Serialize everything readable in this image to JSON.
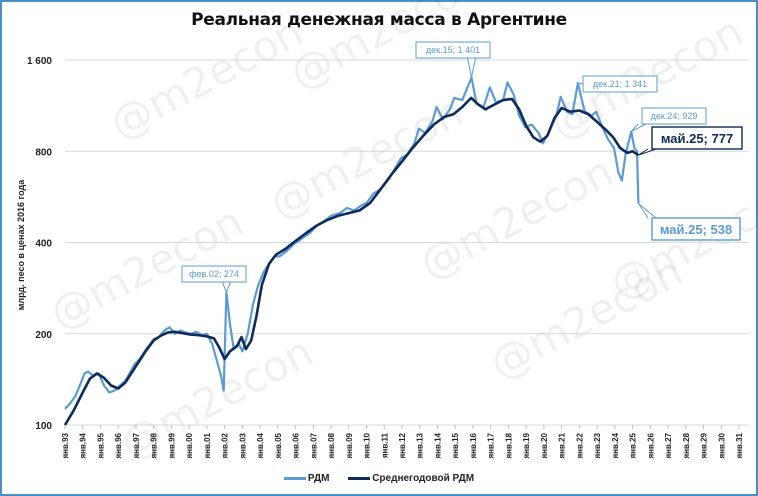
{
  "chart_data": {
    "type": "line",
    "title": "Реальная денежная масса в Аргентине",
    "xlabel": "",
    "ylabel": "млрд. песо в ценах 2016 года",
    "yscale": "log",
    "ylim": [
      100,
      1600
    ],
    "yticks": [
      {
        "value": 100,
        "label": "100"
      },
      {
        "value": 200,
        "label": "200"
      },
      {
        "value": 400,
        "label": "400"
      },
      {
        "value": 800,
        "label": "800"
      },
      {
        "value": 1600,
        "label": "1 600"
      }
    ],
    "xticks": [
      "янв.93",
      "янв.94",
      "янв.95",
      "янв.96",
      "янв.97",
      "янв.98",
      "янв.99",
      "янв.00",
      "янв.01",
      "янв.02",
      "янв.03",
      "янв.04",
      "янв.05",
      "янв.06",
      "янв.07",
      "янв.08",
      "янв.09",
      "янв.10",
      "янв.11",
      "янв.12",
      "янв.13",
      "янв.14",
      "янв.15",
      "янв.16",
      "янв.17",
      "янв.18",
      "янв.19",
      "янв.20",
      "янв.21",
      "янв.22",
      "янв.23",
      "янв.24",
      "янв.25",
      "янв.26",
      "янв.27",
      "янв.28",
      "янв.29",
      "янв.30",
      "янв.31"
    ],
    "grid": true,
    "legend_position": "bottom",
    "series": [
      {
        "name": "РДМ",
        "color": "#5b9bd5",
        "points": [
          [
            1993.0,
            113
          ],
          [
            1993.3,
            118
          ],
          [
            1993.6,
            125
          ],
          [
            1993.9,
            138
          ],
          [
            1994.1,
            148
          ],
          [
            1994.3,
            150
          ],
          [
            1994.6,
            145
          ],
          [
            1994.9,
            148
          ],
          [
            1995.2,
            135
          ],
          [
            1995.5,
            128
          ],
          [
            1995.8,
            130
          ],
          [
            1996.1,
            135
          ],
          [
            1996.4,
            140
          ],
          [
            1996.7,
            150
          ],
          [
            1996.9,
            158
          ],
          [
            1997.2,
            165
          ],
          [
            1997.5,
            175
          ],
          [
            1997.8,
            185
          ],
          [
            1998.0,
            192
          ],
          [
            1998.3,
            195
          ],
          [
            1998.6,
            205
          ],
          [
            1998.9,
            210
          ],
          [
            1999.2,
            200
          ],
          [
            1999.5,
            205
          ],
          [
            1999.8,
            202
          ],
          [
            2000.1,
            200
          ],
          [
            2000.4,
            203
          ],
          [
            2000.7,
            198
          ],
          [
            2001.0,
            200
          ],
          [
            2001.3,
            185
          ],
          [
            2001.6,
            160
          ],
          [
            2001.8,
            145
          ],
          [
            2001.95,
            130
          ],
          [
            2002.1,
            274
          ],
          [
            2002.3,
            215
          ],
          [
            2002.5,
            180
          ],
          [
            2002.8,
            185
          ],
          [
            2003.0,
            175
          ],
          [
            2003.3,
            200
          ],
          [
            2003.6,
            250
          ],
          [
            2003.9,
            290
          ],
          [
            2004.2,
            320
          ],
          [
            2004.5,
            340
          ],
          [
            2004.8,
            360
          ],
          [
            2005.1,
            360
          ],
          [
            2005.5,
            375
          ],
          [
            2005.9,
            395
          ],
          [
            2006.3,
            410
          ],
          [
            2006.8,
            430
          ],
          [
            2007.2,
            455
          ],
          [
            2007.6,
            470
          ],
          [
            2008.0,
            490
          ],
          [
            2008.5,
            500
          ],
          [
            2008.9,
            520
          ],
          [
            2009.3,
            510
          ],
          [
            2009.7,
            530
          ],
          [
            2010.0,
            540
          ],
          [
            2010.4,
            580
          ],
          [
            2010.8,
            600
          ],
          [
            2011.2,
            640
          ],
          [
            2011.6,
            700
          ],
          [
            2011.95,
            760
          ],
          [
            2012.3,
            780
          ],
          [
            2012.7,
            850
          ],
          [
            2012.95,
            950
          ],
          [
            2013.3,
            920
          ],
          [
            2013.7,
            1000
          ],
          [
            2013.95,
            1120
          ],
          [
            2014.3,
            1020
          ],
          [
            2014.7,
            1100
          ],
          [
            2014.95,
            1200
          ],
          [
            2015.4,
            1180
          ],
          [
            2015.92,
            1401
          ],
          [
            2016.2,
            1150
          ],
          [
            2016.6,
            1120
          ],
          [
            2016.95,
            1300
          ],
          [
            2017.3,
            1160
          ],
          [
            2017.7,
            1180
          ],
          [
            2017.95,
            1350
          ],
          [
            2018.3,
            1230
          ],
          [
            2018.6,
            1050
          ],
          [
            2018.95,
            960
          ],
          [
            2019.3,
            980
          ],
          [
            2019.7,
            920
          ],
          [
            2019.95,
            850
          ],
          [
            2020.3,
            930
          ],
          [
            2020.7,
            1050
          ],
          [
            2020.95,
            1210
          ],
          [
            2021.3,
            1080
          ],
          [
            2021.6,
            1060
          ],
          [
            2021.92,
            1341
          ],
          [
            2022.3,
            1080
          ],
          [
            2022.7,
            1050
          ],
          [
            2022.95,
            1080
          ],
          [
            2023.3,
            960
          ],
          [
            2023.6,
            880
          ],
          [
            2023.95,
            820
          ],
          [
            2024.2,
            680
          ],
          [
            2024.4,
            640
          ],
          [
            2024.6,
            780
          ],
          [
            2024.92,
            929
          ],
          [
            2025.1,
            820
          ],
          [
            2025.25,
            800
          ],
          [
            2025.33,
            538
          ]
        ]
      },
      {
        "name": "Среднегодовой РДМ",
        "color": "#0f2b5b",
        "points": [
          [
            1993.0,
            100
          ],
          [
            1993.5,
            112
          ],
          [
            1994.0,
            128
          ],
          [
            1994.4,
            142
          ],
          [
            1994.8,
            148
          ],
          [
            1995.2,
            143
          ],
          [
            1995.6,
            135
          ],
          [
            1996.0,
            132
          ],
          [
            1996.4,
            138
          ],
          [
            1996.8,
            150
          ],
          [
            1997.2,
            163
          ],
          [
            1997.6,
            177
          ],
          [
            1998.0,
            190
          ],
          [
            1998.4,
            197
          ],
          [
            1998.8,
            202
          ],
          [
            1999.2,
            203
          ],
          [
            1999.6,
            201
          ],
          [
            2000.0,
            199
          ],
          [
            2000.5,
            198
          ],
          [
            2001.0,
            196
          ],
          [
            2001.4,
            193
          ],
          [
            2001.7,
            180
          ],
          [
            2002.0,
            165
          ],
          [
            2002.3,
            175
          ],
          [
            2002.7,
            182
          ],
          [
            2002.95,
            195
          ],
          [
            2003.2,
            178
          ],
          [
            2003.5,
            190
          ],
          [
            2003.8,
            230
          ],
          [
            2004.1,
            290
          ],
          [
            2004.5,
            340
          ],
          [
            2004.9,
            365
          ],
          [
            2005.4,
            380
          ],
          [
            2006.0,
            405
          ],
          [
            2006.6,
            430
          ],
          [
            2007.2,
            455
          ],
          [
            2007.8,
            475
          ],
          [
            2008.4,
            490
          ],
          [
            2009.0,
            500
          ],
          [
            2009.6,
            510
          ],
          [
            2010.2,
            540
          ],
          [
            2010.8,
            600
          ],
          [
            2011.4,
            670
          ],
          [
            2012.0,
            740
          ],
          [
            2012.6,
            820
          ],
          [
            2013.2,
            900
          ],
          [
            2013.8,
            980
          ],
          [
            2014.4,
            1040
          ],
          [
            2014.9,
            1060
          ],
          [
            2015.4,
            1120
          ],
          [
            2015.9,
            1200
          ],
          [
            2016.3,
            1140
          ],
          [
            2016.7,
            1100
          ],
          [
            2017.2,
            1140
          ],
          [
            2017.7,
            1180
          ],
          [
            2018.2,
            1190
          ],
          [
            2018.6,
            1100
          ],
          [
            2019.0,
            970
          ],
          [
            2019.4,
            890
          ],
          [
            2019.8,
            860
          ],
          [
            2020.2,
            900
          ],
          [
            2020.6,
            1030
          ],
          [
            2021.0,
            1110
          ],
          [
            2021.5,
            1080
          ],
          [
            2022.0,
            1090
          ],
          [
            2022.5,
            1060
          ],
          [
            2023.0,
            1000
          ],
          [
            2023.5,
            940
          ],
          [
            2023.9,
            890
          ],
          [
            2024.3,
            820
          ],
          [
            2024.7,
            790
          ],
          [
            2025.0,
            800
          ],
          [
            2025.33,
            777
          ]
        ]
      }
    ],
    "annotations": [
      {
        "label": "фев.02;  274",
        "x": 2002.1,
        "y": 274,
        "series": "РДМ"
      },
      {
        "label": "дек.15;  1 401",
        "x": 2015.92,
        "y": 1401,
        "series": "РДМ"
      },
      {
        "label": "дек.21;  1 341",
        "x": 2021.92,
        "y": 1341,
        "series": "РДМ"
      },
      {
        "label": "дек.24;   929",
        "x": 2024.92,
        "y": 929,
        "series": "РДМ"
      },
      {
        "label": "май.25;   777",
        "x": 2025.33,
        "y": 777,
        "series": "Среднегодовой РДМ"
      },
      {
        "label": "май.25;   538",
        "x": 2025.33,
        "y": 538,
        "series": "РДМ"
      }
    ],
    "watermark": "@m2econ"
  },
  "legend": {
    "items": [
      {
        "label": "РДМ",
        "color": "#5b9bd5"
      },
      {
        "label": "Среднегодовой РДМ",
        "color": "#0f2b5b"
      }
    ]
  }
}
